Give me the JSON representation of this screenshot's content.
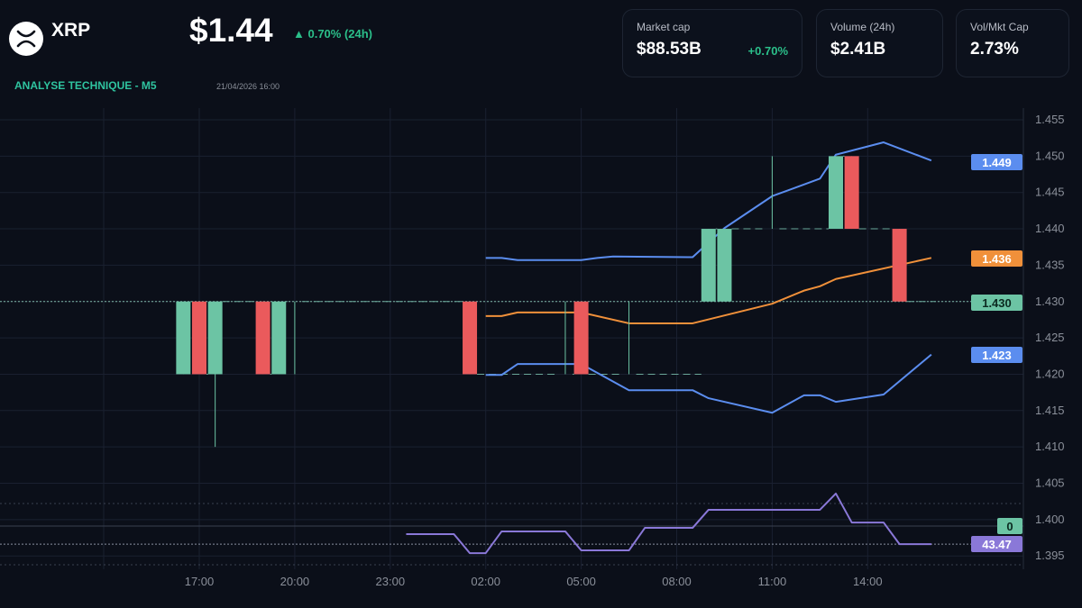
{
  "header": {
    "symbol": "XRP",
    "price": "$1.44",
    "change": "▲ 0.70% (24h)",
    "section": "ANALYSE TECHNIQUE - M5",
    "timestamp": "21/04/2026 16:00",
    "logo_icon": "xrp-logo-icon"
  },
  "stats": [
    {
      "label": "Market cap",
      "value": "$88.53B",
      "sub": "+0.70%"
    },
    {
      "label": "Volume (24h)",
      "value": "$2.41B"
    },
    {
      "label": "Vol/Mkt Cap",
      "value": "2.73%"
    }
  ],
  "colors": {
    "bg": "#0b0f19",
    "up": "#6cc4a4",
    "down": "#ea5a5c",
    "bb_band": "#5b8def",
    "bb_mid": "#f0903a",
    "rsi": "#8a78d8",
    "accent": "#2fc4a0"
  },
  "chart_data": {
    "type": "candlestick",
    "interval_minutes": 30,
    "ylim": [
      1.393,
      1.457
    ],
    "y_ticks": [
      "1.455",
      "1.450",
      "1.445",
      "1.440",
      "1.435",
      "1.430",
      "1.425",
      "1.420",
      "1.415",
      "1.410",
      "1.405",
      "1.400",
      "1.395"
    ],
    "x_ticks": [
      "17:00",
      "20:00",
      "23:00",
      "02:00",
      "05:00",
      "08:00",
      "11:00",
      "14:00"
    ],
    "grid": true,
    "candles": [
      {
        "t": "16:30",
        "o": 1.42,
        "h": 1.43,
        "l": 1.42,
        "c": 1.43
      },
      {
        "t": "17:00",
        "o": 1.43,
        "h": 1.43,
        "l": 1.42,
        "c": 1.42
      },
      {
        "t": "17:30",
        "o": 1.42,
        "h": 1.43,
        "l": 1.41,
        "c": 1.43
      },
      {
        "t": "19:00",
        "o": 1.43,
        "h": 1.43,
        "l": 1.42,
        "c": 1.42
      },
      {
        "t": "19:30",
        "o": 1.42,
        "h": 1.43,
        "l": 1.42,
        "c": 1.43
      },
      {
        "t": "20:00",
        "o": 1.43,
        "h": 1.43,
        "l": 1.42,
        "c": 1.43
      },
      {
        "t": "01:30",
        "o": 1.43,
        "h": 1.43,
        "l": 1.42,
        "c": 1.42
      },
      {
        "t": "04:30",
        "o": 1.42,
        "h": 1.43,
        "l": 1.42,
        "c": 1.42
      },
      {
        "t": "05:00",
        "o": 1.43,
        "h": 1.43,
        "l": 1.42,
        "c": 1.42
      },
      {
        "t": "06:30",
        "o": 1.42,
        "h": 1.43,
        "l": 1.42,
        "c": 1.42
      },
      {
        "t": "09:00",
        "o": 1.43,
        "h": 1.44,
        "l": 1.43,
        "c": 1.44
      },
      {
        "t": "09:30",
        "o": 1.43,
        "h": 1.44,
        "l": 1.43,
        "c": 1.44
      },
      {
        "t": "11:00",
        "o": 1.44,
        "h": 1.45,
        "l": 1.44,
        "c": 1.44
      },
      {
        "t": "13:00",
        "o": 1.44,
        "h": 1.45,
        "l": 1.44,
        "c": 1.45
      },
      {
        "t": "13:30",
        "o": 1.45,
        "h": 1.45,
        "l": 1.44,
        "c": 1.44
      },
      {
        "t": "15:00",
        "o": 1.44,
        "h": 1.44,
        "l": 1.43,
        "c": 1.43
      }
    ],
    "bollinger_upper": [
      [
        "02:00",
        1.436
      ],
      [
        "02:30",
        1.436
      ],
      [
        "03:00",
        1.4357
      ],
      [
        "05:00",
        1.4357
      ],
      [
        "05:30",
        1.436
      ],
      [
        "06:00",
        1.4362
      ],
      [
        "08:30",
        1.4361
      ],
      [
        "09:30",
        1.4401
      ],
      [
        "11:00",
        1.4445
      ],
      [
        "11:30",
        1.4453
      ],
      [
        "12:30",
        1.4469
      ],
      [
        "13:00",
        1.4502
      ],
      [
        "14:30",
        1.4519
      ],
      [
        "16:00",
        1.4494
      ]
    ],
    "bollinger_middle": [
      [
        "02:00",
        1.428
      ],
      [
        "02:30",
        1.428
      ],
      [
        "03:00",
        1.4285
      ],
      [
        "05:00",
        1.4285
      ],
      [
        "06:30",
        1.427
      ],
      [
        "08:30",
        1.427
      ],
      [
        "11:00",
        1.4297
      ],
      [
        "12:00",
        1.4315
      ],
      [
        "12:30",
        1.4321
      ],
      [
        "13:00",
        1.4331
      ],
      [
        "16:00",
        1.436
      ]
    ],
    "bollinger_lower": [
      [
        "02:00",
        1.4199
      ],
      [
        "02:30",
        1.4199
      ],
      [
        "03:00",
        1.4214
      ],
      [
        "05:00",
        1.4214
      ],
      [
        "06:30",
        1.4178
      ],
      [
        "08:30",
        1.4178
      ],
      [
        "09:00",
        1.4167
      ],
      [
        "11:00",
        1.4147
      ],
      [
        "12:00",
        1.4171
      ],
      [
        "12:30",
        1.4171
      ],
      [
        "13:00",
        1.4162
      ],
      [
        "14:30",
        1.4172
      ],
      [
        "16:00",
        1.4227
      ]
    ],
    "rsi": [
      [
        "23:30",
        50
      ],
      [
        "01:00",
        50
      ],
      [
        "01:30",
        37.6
      ],
      [
        "02:00",
        37.6
      ],
      [
        "02:30",
        51.8
      ],
      [
        "04:30",
        51.8
      ],
      [
        "05:00",
        39.4
      ],
      [
        "06:30",
        39.4
      ],
      [
        "07:00",
        54.1
      ],
      [
        "08:30",
        54.1
      ],
      [
        "09:00",
        65.9
      ],
      [
        "12:30",
        65.9
      ],
      [
        "13:00",
        76.5
      ],
      [
        "13:30",
        57.6
      ],
      [
        "14:30",
        57.6
      ],
      [
        "15:00",
        43.47
      ],
      [
        "16:00",
        43.47
      ]
    ],
    "rsi_levels": [
      70,
      30
    ],
    "price_tags": {
      "upper": "1.449",
      "middle": "1.436",
      "last": "1.430",
      "lower": "1.423",
      "zero": "0",
      "rsi": "43.47"
    }
  }
}
